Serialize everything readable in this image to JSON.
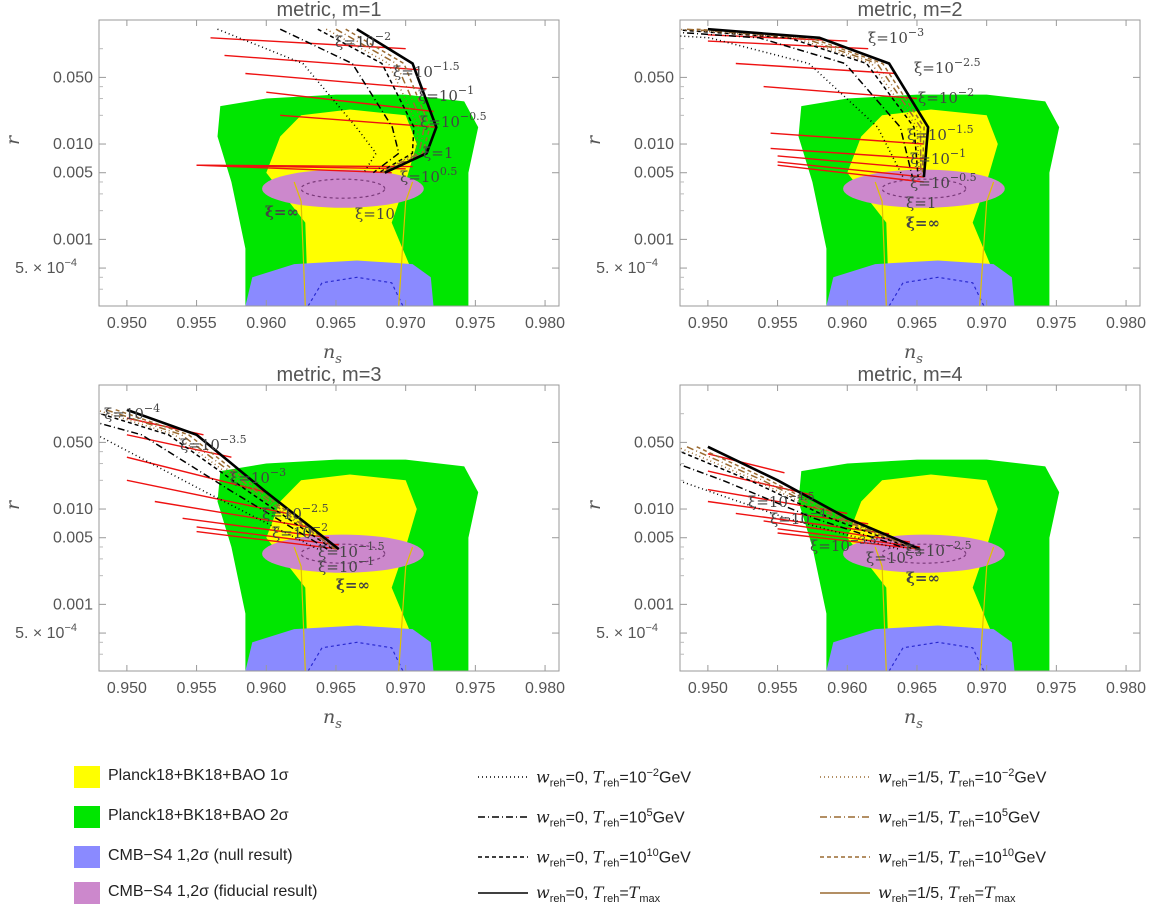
{
  "colors": {
    "planck1": "#ffff00",
    "planck2": "#00e600",
    "cmbNull": "#8a8aff",
    "cmbFid": "#cc88cc",
    "red": "#ee1111",
    "black": "#000000",
    "brown": "#9a6a30"
  },
  "panels": [
    {
      "title": "metric, m=1",
      "xlabel": "n",
      "xlabel_sub": "s",
      "ylabel": "r",
      "xi_labels": [
        {
          "text": "ξ=10",
          "sup": "−2"
        },
        {
          "text": "ξ=10",
          "sup": "−1.5"
        },
        {
          "text": "ξ=10",
          "sup": "−1"
        },
        {
          "text": "ξ=10",
          "sup": "−0.5"
        },
        {
          "text": "ξ=1",
          "sup": ""
        },
        {
          "text": "ξ=10",
          "sup": "0.5"
        },
        {
          "text": "ξ=10",
          "sup": ""
        },
        {
          "text": "ξ=∞",
          "sup": ""
        }
      ]
    },
    {
      "title": "metric, m=2",
      "xlabel": "n",
      "xlabel_sub": "s",
      "ylabel": "r",
      "xi_labels": [
        {
          "text": "ξ=10",
          "sup": "−3"
        },
        {
          "text": "ξ=10",
          "sup": "−2.5"
        },
        {
          "text": "ξ=10",
          "sup": "−2"
        },
        {
          "text": "ξ=10",
          "sup": "−1.5"
        },
        {
          "text": "ξ=10",
          "sup": "−1"
        },
        {
          "text": "ξ=10",
          "sup": "−0.5"
        },
        {
          "text": "ξ=1",
          "sup": ""
        },
        {
          "text": "ξ=∞",
          "sup": ""
        }
      ]
    },
    {
      "title": "metric, m=3",
      "xlabel": "n",
      "xlabel_sub": "s",
      "ylabel": "r",
      "xi_labels": [
        {
          "text": "ξ=10",
          "sup": "−4"
        },
        {
          "text": "ξ=10",
          "sup": "−3.5"
        },
        {
          "text": "ξ=10",
          "sup": "−3"
        },
        {
          "text": "ξ=10",
          "sup": "−2.5"
        },
        {
          "text": "ξ=10",
          "sup": "−2"
        },
        {
          "text": "ξ=10",
          "sup": "−1.5"
        },
        {
          "text": "ξ=10",
          "sup": "−1"
        },
        {
          "text": "ξ=∞",
          "sup": ""
        }
      ]
    },
    {
      "title": "metric, m=4",
      "xlabel": "n",
      "xlabel_sub": "s",
      "ylabel": "r",
      "xi_labels": [
        {
          "text": "ξ=10",
          "sup": "−4.5"
        },
        {
          "text": "ξ=10",
          "sup": "−4"
        },
        {
          "text": "ξ=10",
          "sup": "−3.5"
        },
        {
          "text": "ξ=10",
          "sup": "−3"
        },
        {
          "text": "ξ=10",
          "sup": "−2.5"
        },
        {
          "text": "ξ=∞",
          "sup": ""
        }
      ]
    }
  ],
  "axes": {
    "x_ticks_p1": [
      "0.950",
      "0.955",
      "0.960",
      "0.965",
      "0.970",
      "0.975",
      "0.980"
    ],
    "x_ticks": [
      "0.950",
      "0.955",
      "0.960",
      "0.965",
      "0.970",
      "0.975",
      "0.980"
    ],
    "y_ticks": [
      "0.050",
      "0.010",
      "0.005",
      "0.001",
      "5. × 10"
    ],
    "y_tick_sup": "−4"
  },
  "legend": {
    "regions": [
      "Planck18+BK18+BAO 1σ",
      "Planck18+BK18+BAO 2σ",
      "CMB−S4 1,2σ (null result)",
      "CMB−S4 1,2σ (fiducial result)"
    ],
    "lines_w0": [
      {
        "w": "0",
        "T": "10",
        "Tsup": "−2",
        "unit": "GeV"
      },
      {
        "w": "0",
        "T": "10",
        "Tsup": "5",
        "unit": "GeV"
      },
      {
        "w": "0",
        "T": "10",
        "Tsup": "10",
        "unit": "GeV"
      },
      {
        "w": "0",
        "T": "",
        "Tsup": "",
        "unit": "max"
      }
    ],
    "lines_w15": [
      {
        "w": "1/5",
        "T": "10",
        "Tsup": "−2",
        "unit": "GeV"
      },
      {
        "w": "1/5",
        "T": "10",
        "Tsup": "5",
        "unit": "GeV"
      },
      {
        "w": "1/5",
        "T": "10",
        "Tsup": "10",
        "unit": "GeV"
      },
      {
        "w": "1/5",
        "T": "",
        "Tsup": "",
        "unit": "max"
      }
    ]
  },
  "chart_data": [
    {
      "type": "line",
      "title": "metric, m=1",
      "xlabel": "n_s",
      "ylabel": "r",
      "xlim": [
        0.948,
        0.981
      ],
      "ylim": [
        0.0002,
        0.2
      ],
      "yscale": "log",
      "xi_attractor": [
        0.965,
        0.0035
      ],
      "xi_curve_Tmax_w0": [
        [
          0.9665,
          0.16
        ],
        [
          0.9705,
          0.07
        ],
        [
          0.9722,
          0.015
        ],
        [
          0.9715,
          0.008
        ],
        [
          0.9685,
          0.005
        ]
      ],
      "xi_curve_Treh_1e-2_w0": [
        [
          0.956,
          0.13
        ],
        [
          0.96,
          0.04
        ],
        [
          0.963,
          0.015
        ],
        [
          0.9625,
          0.007
        ]
      ],
      "red_isoxi_lines": [
        [
          0.956,
          0.13
        ],
        [
          0.955,
          0.006
        ]
      ]
    },
    {
      "type": "line",
      "title": "metric, m=2",
      "xlabel": "n_s",
      "ylabel": "r",
      "xlim": [
        0.948,
        0.981
      ],
      "ylim": [
        0.0002,
        0.2
      ],
      "yscale": "log",
      "xi_attractor": [
        0.9655,
        0.0038
      ],
      "xi_curve_Tmax_w0": [
        [
          0.95,
          0.16
        ],
        [
          0.958,
          0.13
        ],
        [
          0.963,
          0.07
        ],
        [
          0.9658,
          0.015
        ],
        [
          0.9655,
          0.0045
        ]
      ],
      "xi_curve_Treh_1e-2_w0": [
        [
          0.95,
          0.07
        ],
        [
          0.953,
          0.035
        ],
        [
          0.9545,
          0.009
        ]
      ]
    },
    {
      "type": "line",
      "title": "metric, m=3",
      "xlabel": "n_s",
      "ylabel": "r",
      "xlim": [
        0.948,
        0.981
      ],
      "ylim": [
        0.0002,
        0.2
      ],
      "yscale": "log",
      "xi_attractor": [
        0.9652,
        0.0038
      ],
      "xi_curve_Tmax_w0": [
        [
          0.95,
          0.11
        ],
        [
          0.955,
          0.06
        ],
        [
          0.96,
          0.015
        ],
        [
          0.9652,
          0.0038
        ]
      ]
    },
    {
      "type": "line",
      "title": "metric, m=4",
      "xlabel": "n_s",
      "ylabel": "r",
      "xlim": [
        0.948,
        0.981
      ],
      "ylim": [
        0.0002,
        0.2
      ],
      "yscale": "log",
      "xi_attractor": [
        0.9652,
        0.0038
      ],
      "xi_curve_Tmax_w0": [
        [
          0.95,
          0.045
        ],
        [
          0.955,
          0.02
        ],
        [
          0.96,
          0.008
        ],
        [
          0.9652,
          0.0038
        ]
      ]
    }
  ]
}
